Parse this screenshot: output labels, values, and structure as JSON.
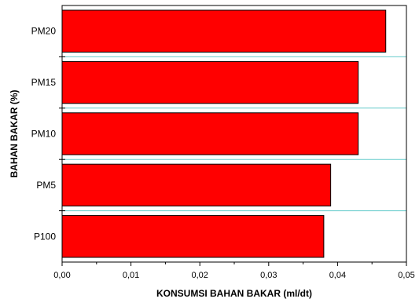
{
  "chart_data": {
    "type": "bar",
    "orientation": "horizontal",
    "categories": [
      "P100",
      "PM5",
      "PM10",
      "PM15",
      "PM20"
    ],
    "values": [
      0.038,
      0.039,
      0.043,
      0.043,
      0.047
    ],
    "xlabel": "KONSUMSI BAHAN BAKAR (ml/dt)",
    "ylabel": "BAHAN BAKAR (%)",
    "xlim": [
      0,
      0.05
    ],
    "xticks": [
      "0,00",
      "0,01",
      "0,02",
      "0,03",
      "0,04",
      "0,05"
    ],
    "grid": "horizontal category separators",
    "legend": "none",
    "colors": {
      "bar": "#ff0000",
      "bar_edge": "#000000",
      "grid": "#66cccc",
      "axis": "#000000"
    }
  }
}
